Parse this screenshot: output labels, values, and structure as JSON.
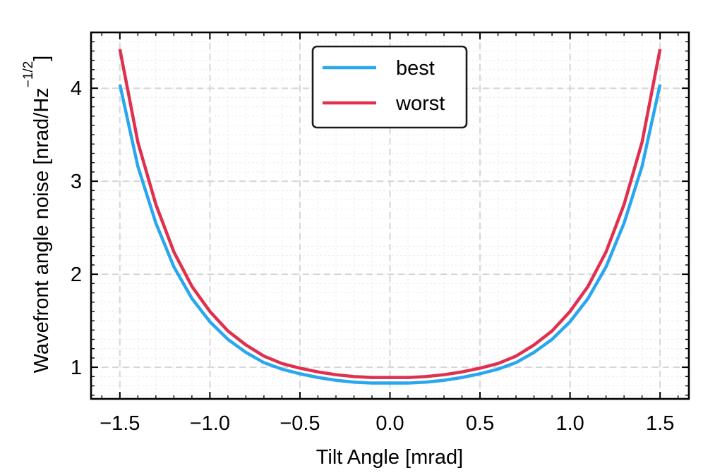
{
  "chart_data": {
    "type": "line",
    "xlabel": "Tilt Angle [mrad]",
    "ylabel_main": "Wavefront angle noise [nrad/Hz",
    "ylabel_exponent": "−1/2",
    "ylabel_close": "]",
    "xlim": [
      -1.66,
      1.66
    ],
    "ylim": [
      0.66,
      4.6
    ],
    "xticks": [
      -1.5,
      -1.0,
      -0.5,
      0.0,
      0.5,
      1.0,
      1.5
    ],
    "xtick_labels": [
      "−1.5",
      "−1.0",
      "−0.5",
      "0.0",
      "0.5",
      "1.0",
      "1.5"
    ],
    "yticks": [
      1,
      2,
      3,
      4
    ],
    "ytick_labels": [
      "1",
      "2",
      "3",
      "4"
    ],
    "grid": true,
    "legend_position": "top-center",
    "series": [
      {
        "name": "best",
        "color": "#29A6F0",
        "x": [
          -1.5,
          -1.4,
          -1.3,
          -1.2,
          -1.1,
          -1.0,
          -0.9,
          -0.8,
          -0.7,
          -0.6,
          -0.5,
          -0.4,
          -0.3,
          -0.2,
          -0.1,
          0.0,
          0.1,
          0.2,
          0.3,
          0.4,
          0.5,
          0.6,
          0.7,
          0.8,
          0.9,
          1.0,
          1.1,
          1.2,
          1.3,
          1.4,
          1.5
        ],
        "y": [
          4.04,
          3.16,
          2.55,
          2.08,
          1.74,
          1.49,
          1.3,
          1.16,
          1.05,
          0.98,
          0.93,
          0.89,
          0.86,
          0.84,
          0.83,
          0.83,
          0.83,
          0.84,
          0.86,
          0.89,
          0.93,
          0.98,
          1.05,
          1.16,
          1.3,
          1.49,
          1.74,
          2.08,
          2.55,
          3.16,
          4.04
        ]
      },
      {
        "name": "worst",
        "color": "#E0304E",
        "x": [
          -1.5,
          -1.4,
          -1.3,
          -1.2,
          -1.1,
          -1.0,
          -0.9,
          -0.8,
          -0.7,
          -0.6,
          -0.5,
          -0.4,
          -0.3,
          -0.2,
          -0.1,
          0.0,
          0.1,
          0.2,
          0.3,
          0.4,
          0.5,
          0.6,
          0.7,
          0.8,
          0.9,
          1.0,
          1.1,
          1.2,
          1.3,
          1.4,
          1.5
        ],
        "y": [
          4.42,
          3.42,
          2.75,
          2.24,
          1.87,
          1.6,
          1.39,
          1.24,
          1.12,
          1.04,
          0.99,
          0.95,
          0.92,
          0.9,
          0.89,
          0.89,
          0.89,
          0.9,
          0.92,
          0.95,
          0.99,
          1.04,
          1.12,
          1.24,
          1.39,
          1.6,
          1.87,
          2.24,
          2.75,
          3.42,
          4.42
        ]
      }
    ]
  }
}
